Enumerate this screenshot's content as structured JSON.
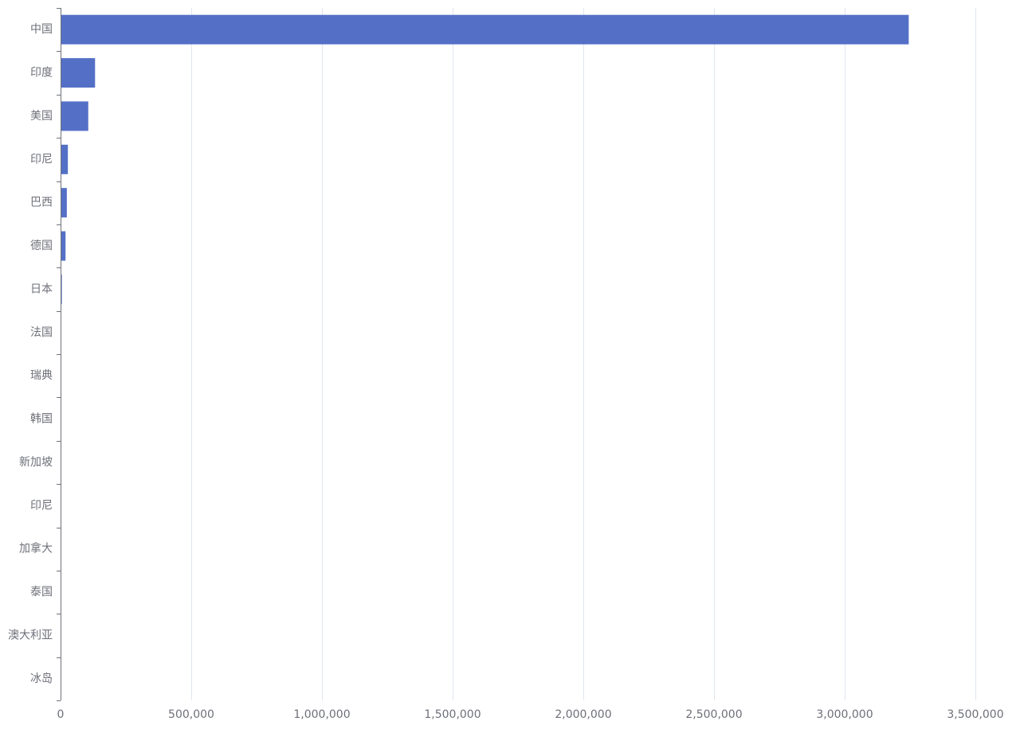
{
  "chart_data": {
    "type": "bar",
    "orientation": "horizontal",
    "title": "",
    "xlabel": "",
    "ylabel": "",
    "categories": [
      "中国",
      "印度",
      "美国",
      "印尼",
      "巴西",
      "德国",
      "日本",
      "法国",
      "瑞典",
      "韩国",
      "新加坡",
      "印尼",
      "加拿大",
      "泰国",
      "澳大利亚",
      "冰岛"
    ],
    "values": [
      3245000,
      132000,
      106000,
      28000,
      24000,
      19000,
      5000,
      3000,
      1200,
      900,
      600,
      500,
      400,
      300,
      200,
      100
    ],
    "xlim": [
      0,
      3500000
    ],
    "x_ticks": [
      0,
      500000,
      1000000,
      1500000,
      2000000,
      2500000,
      3000000,
      3500000
    ],
    "x_tick_labels": [
      "0",
      "500,000",
      "1,000,000",
      "1,500,000",
      "2,000,000",
      "2,500,000",
      "3,000,000",
      "3,500,000"
    ],
    "grid": true,
    "legend": "none",
    "colors": {
      "bar": "#5470c6",
      "grid": "#e0e6f1",
      "axis": "#6e7079",
      "label": "#6e7079"
    }
  }
}
